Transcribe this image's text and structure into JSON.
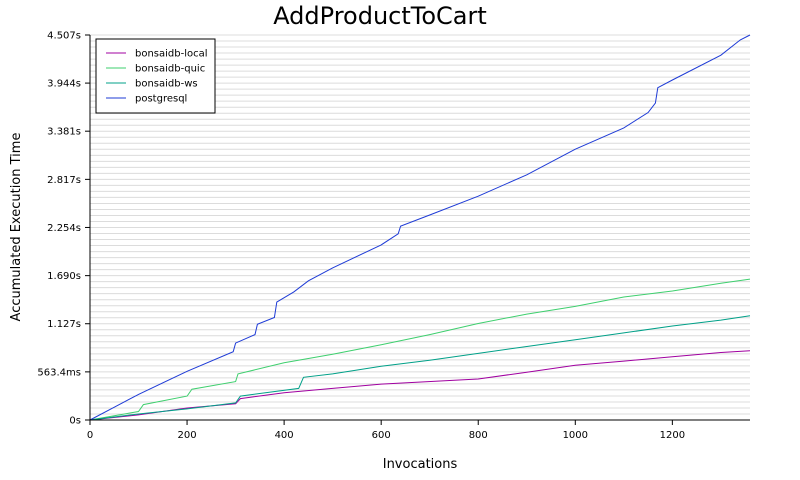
{
  "chart_data": {
    "type": "line",
    "title": "AddProductToCart",
    "xlabel": "Invocations",
    "ylabel": "Accumulated Execution Time",
    "xlim": [
      0,
      1360
    ],
    "ylim_seconds": [
      0,
      4.507
    ],
    "x_ticks": [
      0,
      200,
      400,
      600,
      800,
      1000,
      1200
    ],
    "x_tick_labels": [
      "0",
      "200",
      "400",
      "600",
      "800",
      "1000",
      "1200"
    ],
    "y_ticks_seconds": [
      0,
      0.5634,
      1.127,
      1.69,
      2.254,
      2.817,
      3.381,
      3.944,
      4.507
    ],
    "y_tick_labels": [
      "0s",
      "563.4ms",
      "1.127s",
      "1.690s",
      "2.254s",
      "2.817s",
      "3.381s",
      "3.944s",
      "4.507s"
    ],
    "grid": true,
    "legend_position": "top-left",
    "series": [
      {
        "name": "bonsaidb-local",
        "color": "#a000a0",
        "points": [
          [
            0,
            0
          ],
          [
            100,
            0.06
          ],
          [
            200,
            0.14
          ],
          [
            300,
            0.19
          ],
          [
            310,
            0.25
          ],
          [
            400,
            0.32
          ],
          [
            500,
            0.37
          ],
          [
            600,
            0.42
          ],
          [
            800,
            0.48
          ],
          [
            900,
            0.56
          ],
          [
            1000,
            0.64
          ],
          [
            1100,
            0.69
          ],
          [
            1200,
            0.74
          ],
          [
            1300,
            0.79
          ],
          [
            1360,
            0.81
          ]
        ]
      },
      {
        "name": "bonsaidb-quic",
        "color": "#3ecf6e",
        "points": [
          [
            0,
            0
          ],
          [
            50,
            0.05
          ],
          [
            100,
            0.1
          ],
          [
            110,
            0.18
          ],
          [
            200,
            0.28
          ],
          [
            210,
            0.36
          ],
          [
            300,
            0.45
          ],
          [
            305,
            0.54
          ],
          [
            400,
            0.67
          ],
          [
            500,
            0.77
          ],
          [
            600,
            0.88
          ],
          [
            700,
            1.0
          ],
          [
            800,
            1.13
          ],
          [
            900,
            1.24
          ],
          [
            1000,
            1.33
          ],
          [
            1100,
            1.44
          ],
          [
            1200,
            1.51
          ],
          [
            1300,
            1.6
          ],
          [
            1360,
            1.65
          ]
        ]
      },
      {
        "name": "bonsaidb-ws",
        "color": "#00a088",
        "points": [
          [
            0,
            0
          ],
          [
            100,
            0.07
          ],
          [
            200,
            0.13
          ],
          [
            300,
            0.2
          ],
          [
            310,
            0.28
          ],
          [
            430,
            0.37
          ],
          [
            440,
            0.5
          ],
          [
            500,
            0.54
          ],
          [
            600,
            0.63
          ],
          [
            700,
            0.7
          ],
          [
            800,
            0.78
          ],
          [
            900,
            0.86
          ],
          [
            1000,
            0.94
          ],
          [
            1100,
            1.02
          ],
          [
            1200,
            1.1
          ],
          [
            1300,
            1.17
          ],
          [
            1360,
            1.22
          ]
        ]
      },
      {
        "name": "postgresql",
        "color": "#1e3bd6",
        "points": [
          [
            0,
            0
          ],
          [
            50,
            0.15
          ],
          [
            100,
            0.3
          ],
          [
            200,
            0.57
          ],
          [
            295,
            0.8
          ],
          [
            300,
            0.9
          ],
          [
            340,
            1.0
          ],
          [
            345,
            1.12
          ],
          [
            380,
            1.2
          ],
          [
            385,
            1.38
          ],
          [
            420,
            1.5
          ],
          [
            450,
            1.63
          ],
          [
            500,
            1.78
          ],
          [
            600,
            2.05
          ],
          [
            635,
            2.18
          ],
          [
            640,
            2.27
          ],
          [
            700,
            2.4
          ],
          [
            800,
            2.62
          ],
          [
            900,
            2.87
          ],
          [
            1000,
            3.17
          ],
          [
            1100,
            3.42
          ],
          [
            1150,
            3.6
          ],
          [
            1165,
            3.71
          ],
          [
            1170,
            3.89
          ],
          [
            1200,
            3.98
          ],
          [
            1300,
            4.27
          ],
          [
            1340,
            4.45
          ],
          [
            1360,
            4.507
          ]
        ]
      }
    ]
  }
}
